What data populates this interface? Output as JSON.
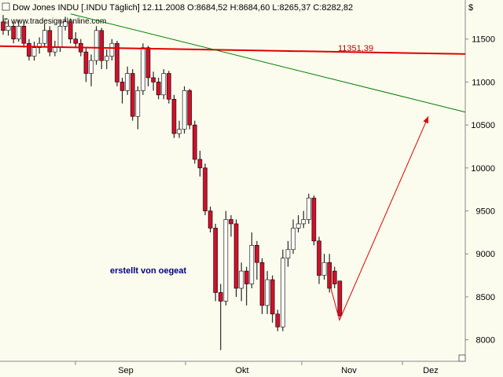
{
  "chart_data": {
    "type": "candlestick",
    "header": "Dow Jones INDU [.INDU Täglich] 12.11.2008 O:8684,52 H:8684,60 L:8265,37 C:8282,82",
    "watermark": "© www.tradesignalonline.com",
    "currency": "$",
    "annotation": "erstellt von oegeat",
    "ma_label": "11351,39",
    "month_labels": [
      "Sep",
      "Okt",
      "Nov",
      "Dez"
    ],
    "categories": [
      null,
      null,
      null,
      null,
      null,
      null,
      null,
      null,
      null,
      null,
      null,
      null,
      null,
      null,
      null,
      null,
      null,
      null,
      null,
      null,
      null,
      null,
      null,
      null,
      null,
      null,
      null,
      null,
      null,
      null,
      null,
      null,
      null,
      null,
      null,
      null,
      null,
      null,
      null,
      null,
      null,
      null,
      null,
      null,
      null,
      null,
      null,
      null,
      null,
      null,
      null,
      null,
      null,
      null,
      null,
      null,
      null,
      null,
      null,
      null,
      null,
      null,
      null,
      null,
      null,
      null
    ],
    "open": [
      11700,
      11600,
      11650,
      11500,
      11650,
      11450,
      11300,
      11400,
      11450,
      11600,
      11350,
      11400,
      11650,
      11700,
      11500,
      11450,
      11350,
      11100,
      11250,
      11600,
      11250,
      11300,
      11450,
      11000,
      10900,
      11100,
      10600,
      10900,
      11400,
      11050,
      11000,
      10850,
      11100,
      10800,
      10400,
      10450,
      10900,
      10500,
      10100,
      10000,
      9500,
      9300,
      8550,
      8450,
      9400,
      9350,
      8600,
      8800,
      8650,
      9100,
      8900,
      8400,
      8700,
      8300,
      8150,
      8950,
      9050,
      9300,
      9350,
      9400,
      9650,
      9150,
      8750,
      8900,
      8800,
      8684.52
    ],
    "high": [
      11780,
      11720,
      11700,
      11720,
      11700,
      11500,
      11470,
      11520,
      11680,
      11650,
      11480,
      11720,
      11760,
      11740,
      11580,
      11500,
      11400,
      11320,
      11650,
      11630,
      11380,
      11500,
      11480,
      11050,
      11180,
      11150,
      10950,
      11450,
      11420,
      11120,
      11050,
      11150,
      11130,
      10850,
      10550,
      10950,
      10920,
      10550,
      10200,
      10050,
      9550,
      9350,
      8650,
      9500,
      9450,
      9400,
      8900,
      8850,
      9250,
      9150,
      8950,
      8800,
      8750,
      8350,
      9050,
      9150,
      9400,
      9450,
      9500,
      9700,
      9680,
      9200,
      9000,
      9000,
      8850,
      8684.6
    ],
    "low": [
      11550,
      11540,
      11450,
      11470,
      11400,
      11250,
      11250,
      11330,
      11400,
      11300,
      11300,
      11350,
      11600,
      11450,
      11400,
      11300,
      11000,
      10950,
      11200,
      11150,
      11150,
      11250,
      10950,
      10750,
      10850,
      10550,
      10450,
      10850,
      10950,
      10900,
      10800,
      10800,
      10750,
      10350,
      10350,
      10400,
      10450,
      10050,
      9900,
      9450,
      9250,
      8450,
      7880,
      8400,
      9200,
      8500,
      8450,
      8400,
      8600,
      8700,
      8300,
      8300,
      8200,
      8100,
      8100,
      8850,
      9000,
      9250,
      9300,
      9350,
      9100,
      8650,
      8700,
      8550,
      8600,
      8265.37
    ],
    "close": [
      11600,
      11650,
      11500,
      11650,
      11450,
      11300,
      11400,
      11450,
      11600,
      11350,
      11400,
      11650,
      11700,
      11500,
      11450,
      11350,
      11100,
      11250,
      11600,
      11250,
      11300,
      11450,
      11000,
      10900,
      11100,
      10600,
      10900,
      11400,
      11050,
      11000,
      10850,
      11100,
      10800,
      10400,
      10450,
      10900,
      10500,
      10100,
      10000,
      9500,
      9300,
      8550,
      8450,
      9400,
      9350,
      8600,
      8800,
      8650,
      9100,
      8900,
      8400,
      8700,
      8300,
      8150,
      8950,
      9050,
      9300,
      9350,
      9400,
      9650,
      9150,
      8750,
      8900,
      8600,
      8650,
      8282.82
    ],
    "up_color": "#ffffff",
    "down_color": "#d0102a",
    "ma": {
      "from": 11418,
      "to": 11326,
      "color": "#e00000"
    },
    "trendline": {
      "from": 11792,
      "to": 10650,
      "color": "#008000"
    },
    "arrow": {
      "points": [
        8700,
        8230,
        10600
      ],
      "color": "#e00000"
    },
    "ylim": [
      7750,
      11790
    ],
    "yticks": [
      8000,
      8500,
      9000,
      9500,
      10000,
      10500,
      11000,
      11500
    ]
  }
}
